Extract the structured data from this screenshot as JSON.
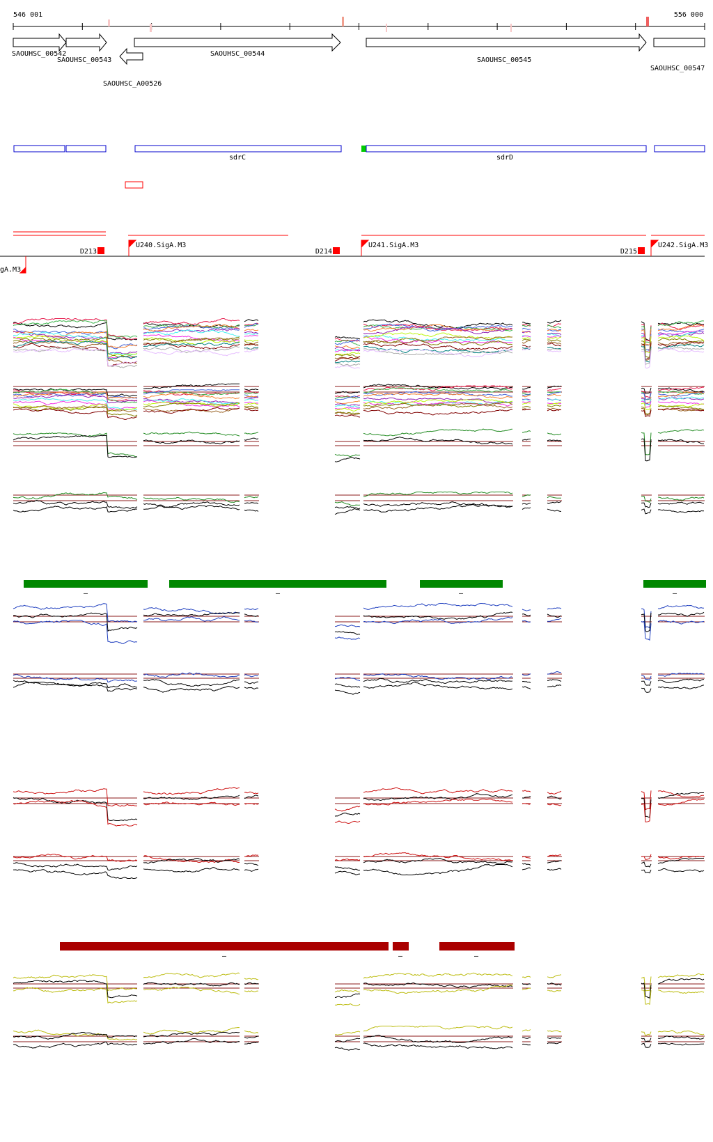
{
  "coords": {
    "start": "546 001",
    "end": "556 000"
  },
  "colors": {
    "gene_outline": "#000000",
    "annotation_box": "#0000cc",
    "annotation_start": "#00cc00",
    "promoter": "#ff0000",
    "operon_line": "#ff0000",
    "green_bar": "#008800",
    "dark_red_bar": "#aa0000",
    "baseline": "#8b1a1a",
    "cond_green": "#228b22",
    "cond_blue": "#1f3fbf",
    "cond_red": "#cc1111",
    "cond_yellow": "#bcbc10"
  },
  "genes": [
    {
      "label": "SAOUHSC_00542",
      "strand": "+"
    },
    {
      "label": "SAOUHSC_00543",
      "strand": "+"
    },
    {
      "label": "SAOUHSC_A00526",
      "strand": "-"
    },
    {
      "label": "SAOUHSC_00544",
      "strand": "+"
    },
    {
      "label": "SAOUHSC_00545",
      "strand": "+"
    },
    {
      "label": "SAOUHSC_00547",
      "strand": "+"
    }
  ],
  "annotations": [
    {
      "label": ""
    },
    {
      "label": ""
    },
    {
      "label": "sdrC"
    },
    {
      "label": "sdrD"
    },
    {
      "label": ""
    }
  ],
  "promoter_labels": {
    "down": [
      "D213",
      "D214",
      "D215"
    ],
    "up": [
      "U240.SigA.M3",
      "U241.SigA.M3",
      "U242.SigA.M3",
      "gA.M3"
    ]
  },
  "bar_marks": [
    "–",
    "–",
    "–",
    "–",
    "–",
    "–",
    "–"
  ]
}
